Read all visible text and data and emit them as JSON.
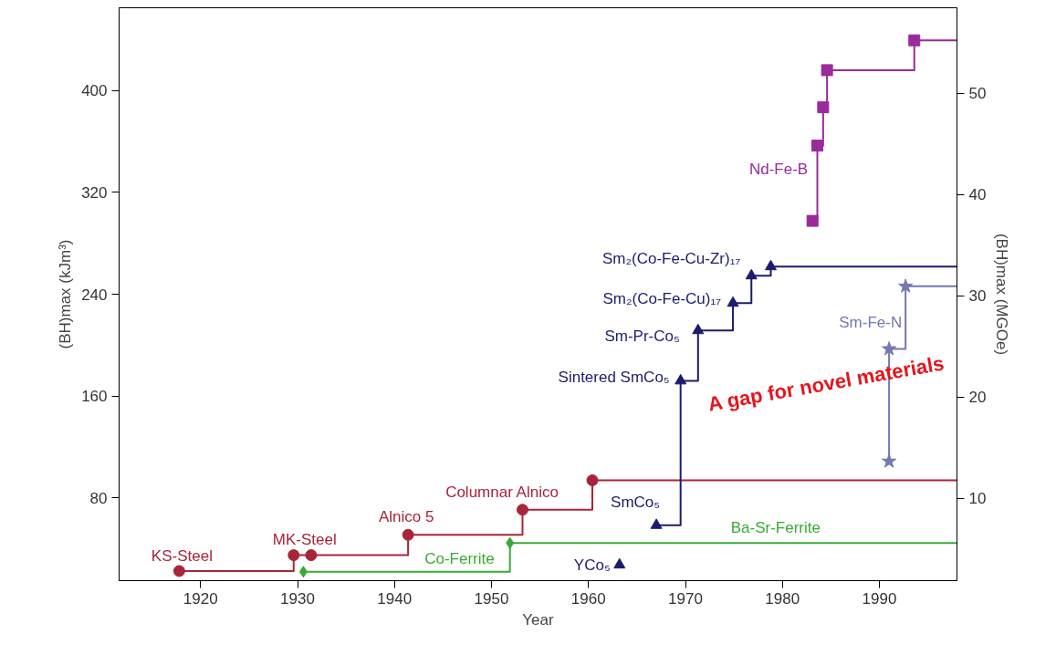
{
  "chart_data": {
    "type": "step",
    "xlabel": "Year",
    "ylabel": "(BH)max (kJm³)",
    "y2label": "(BH)max (MGOe)",
    "xlim": [
      1911.6,
      1998
    ],
    "xticks": [
      1920,
      1930,
      1940,
      1950,
      1960,
      1970,
      1980,
      1990
    ],
    "ylim": [
      15,
      465
    ],
    "yticks": [
      80,
      160,
      240,
      320,
      400
    ],
    "y2lim": [
      1.88,
      58.43
    ],
    "y2ticks": [
      10,
      20,
      30,
      40,
      50
    ],
    "grid": false,
    "line_style": "solid",
    "series": [
      {
        "color": "#a8243a",
        "marker": "circle",
        "x": [
          1917.8,
          1929.6,
          1931.4,
          1941.4,
          1953.2,
          1960.4,
          1998
        ],
        "values": [
          22.6,
          35,
          35,
          51,
          70.7,
          93.8,
          93.8
        ]
      },
      {
        "color": "#3aaa35",
        "marker": "diamond",
        "x": [
          1930.6,
          1951.9,
          1998
        ],
        "values": [
          22,
          44.6,
          44.6
        ]
      },
      {
        "color": "#1c1c6c",
        "marker": "triangle",
        "x": [
          1967,
          1969.5,
          1971.3,
          1974.9,
          1976.8,
          1978.8,
          1998
        ],
        "values": [
          58.5,
          172,
          211.5,
          233,
          254.5,
          261.7,
          261.7
        ]
      },
      {
        "type": "scatter",
        "color": "#1c1c6c",
        "marker": "triangle",
        "x": [
          1963.2
        ],
        "values": [
          27.4
        ]
      },
      {
        "color": "#9b2a9b",
        "marker": "square",
        "x": [
          1983.1,
          1983.6,
          1984.2,
          1984.6,
          1993.6,
          1998
        ],
        "values": [
          297.6,
          356.7,
          386.8,
          416,
          439.4,
          439.4
        ]
      },
      {
        "color": "#7378ad",
        "marker": "star",
        "x": [
          1991.0,
          1991.0,
          1992.7,
          1998
        ],
        "values": [
          108.7,
          197,
          246.2,
          246.2
        ]
      }
    ],
    "annotations": [
      {
        "text": "KS-Steel",
        "x": 1917.8,
        "y": 22.6
      },
      {
        "text": "MK-Steel",
        "x": 1929.6,
        "y": 35
      },
      {
        "text": "Alnico 5",
        "x": 1941.4,
        "y": 51
      },
      {
        "text": "Columnar Alnico",
        "x": 1953.2,
        "y": 70.7
      },
      {
        "text": "Co-Ferrite",
        "x": 1946.7,
        "y": 22
      },
      {
        "text": "Ba-Sr-Ferrite",
        "x": 1979.3,
        "y": 44.6
      },
      {
        "text": "YCo₅",
        "x": 1963.2,
        "y": 27.4
      },
      {
        "text": "SmCo₅",
        "x": 1967,
        "y": 58.5
      },
      {
        "text": "Sintered SmCo₅",
        "x": 1969.5,
        "y": 172
      },
      {
        "text": "Sm-Pr-Co₅",
        "x": 1971.3,
        "y": 211.5
      },
      {
        "text": "Sm₂(Co-Fe-Cu)₁₇",
        "x": 1974.9,
        "y": 233
      },
      {
        "text": "Sm₂(Co-Fe-Cu-Zr)₁₇",
        "x": 1976.8,
        "y": 254.5
      },
      {
        "text": "Nd-Fe-B",
        "x": 1983.1,
        "y": 297.6
      },
      {
        "text": "Sm-Fe-N",
        "x": 1992.7,
        "y": 218
      },
      "A gap for novel materials"
    ]
  }
}
